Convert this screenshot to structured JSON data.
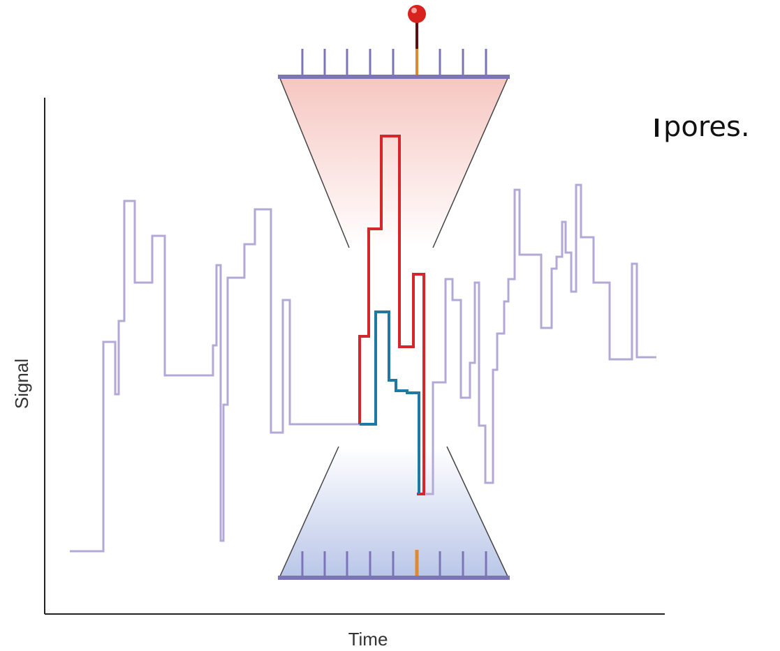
{
  "text_fragment": "pores.",
  "y_axis_label": "Signal",
  "x_axis_label": "Time"
}
